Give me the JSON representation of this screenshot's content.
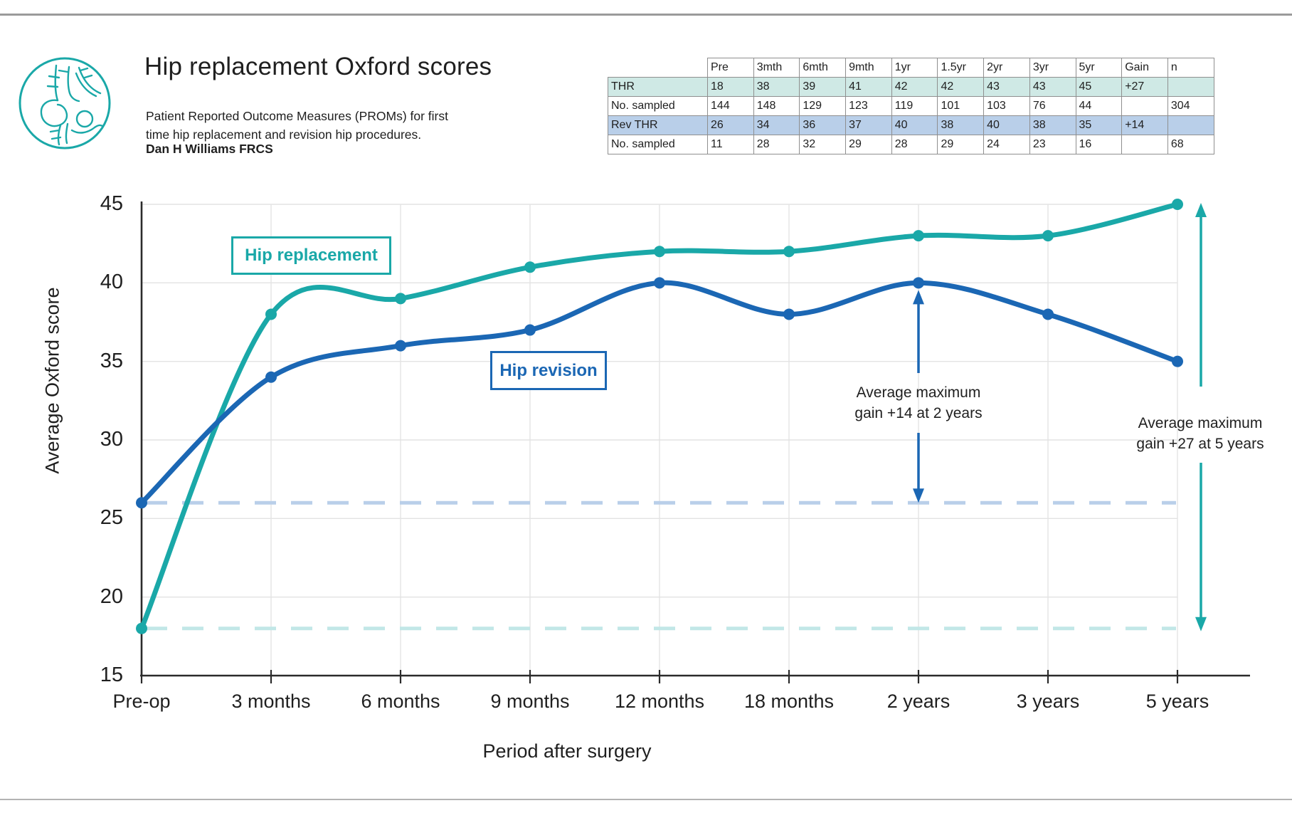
{
  "header": {
    "title": "Hip replacement Oxford scores",
    "subtitle_line1": "Patient Reported Outcome Measures (PROMs) for first",
    "subtitle_line2": "time hip replacement and revision hip procedures.",
    "author": "Dan H Williams FRCS"
  },
  "table": {
    "columns": [
      "",
      "Pre",
      "3mth",
      "6mth",
      "9mth",
      "1yr",
      "1.5yr",
      "2yr",
      "3yr",
      "5yr",
      "Gain",
      "n"
    ],
    "rows": [
      {
        "label": "THR",
        "values": [
          "18",
          "38",
          "39",
          "41",
          "42",
          "42",
          "43",
          "43",
          "45",
          "+27",
          ""
        ],
        "fill": "#cfe9e5"
      },
      {
        "label": "No. sampled",
        "values": [
          "144",
          "148",
          "129",
          "123",
          "119",
          "101",
          "103",
          "76",
          "44",
          "",
          "304"
        ],
        "fill": "#ffffff"
      },
      {
        "label": "Rev THR",
        "values": [
          "26",
          "34",
          "36",
          "37",
          "40",
          "38",
          "40",
          "38",
          "35",
          "+14",
          ""
        ],
        "fill": "#b9cfe9"
      },
      {
        "label": "No. sampled",
        "values": [
          "11",
          "28",
          "32",
          "29",
          "28",
          "29",
          "24",
          "23",
          "16",
          "",
          "68"
        ],
        "fill": "#ffffff"
      }
    ]
  },
  "legend": {
    "replacement": "Hip replacement",
    "revision": "Hip revision"
  },
  "chart_data": {
    "type": "line",
    "categories": [
      "Pre-op",
      "3 months",
      "6 months",
      "9 months",
      "12 months",
      "18 months",
      "2 years",
      "3 years",
      "5 years"
    ],
    "series": [
      {
        "name": "Hip replacement",
        "values": [
          18,
          38,
          39,
          41,
          42,
          42,
          43,
          43,
          45
        ],
        "color": "#1aa8a8"
      },
      {
        "name": "Hip revision",
        "values": [
          26,
          34,
          36,
          37,
          40,
          38,
          40,
          38,
          35
        ],
        "color": "#1b67b4"
      }
    ],
    "title": "Hip replacement Oxford scores",
    "xlabel": "Period after surgery",
    "ylabel": "Average Oxford score",
    "ylim": [
      15,
      45
    ],
    "yticks": [
      15,
      20,
      25,
      30,
      35,
      40,
      45
    ],
    "grid": true,
    "legend_position": "inline-boxes",
    "baselines": [
      {
        "value": 26,
        "color": "#b9cfe9",
        "meaning": "Rev THR pre-op score"
      },
      {
        "value": 18,
        "color": "#c2e7e7",
        "meaning": "THR pre-op score"
      }
    ],
    "annotations": [
      {
        "line1": "Average maximum",
        "line2": "gain +14 at 2 years",
        "at_category": "2 years",
        "from_value": 40,
        "to_value": 26,
        "color": "#1b67b4"
      },
      {
        "line1": "Average maximum",
        "line2": "gain +27 at 5 years",
        "at_category": "5 years",
        "from_value": 45,
        "to_value": 18,
        "color": "#1aa8a8"
      }
    ]
  },
  "colors": {
    "replacement": "#1aa8a8",
    "revision": "#1b67b4",
    "grid": "#e3e3e3",
    "axis": "#2b2b2b",
    "table_teal_fill": "#cfe9e5",
    "table_blue_fill": "#b9cfe9",
    "dashed_blue": "#b9cfe9",
    "dashed_teal": "#c2e7e7"
  }
}
